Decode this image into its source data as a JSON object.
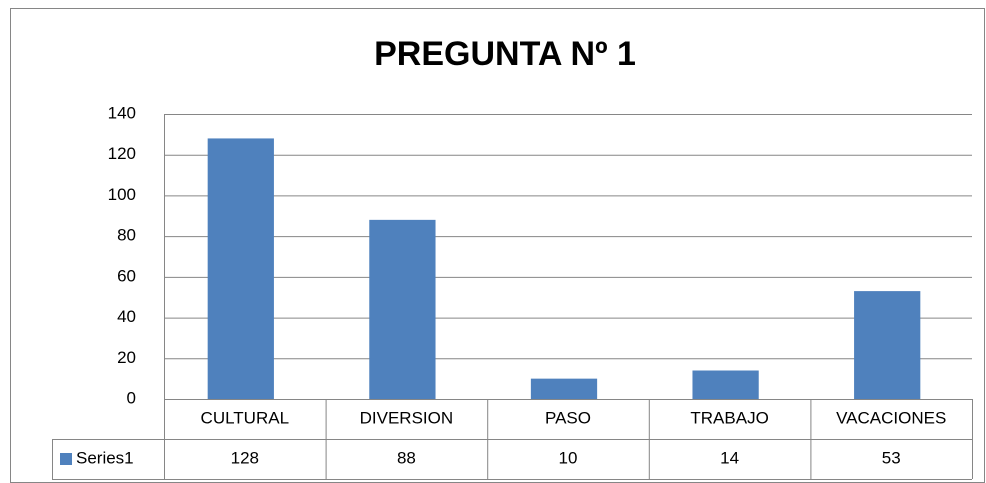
{
  "chart_data": {
    "type": "bar",
    "title": "PREGUNTA Nº 1",
    "categories": [
      "CULTURAL",
      "DIVERSION",
      "PASO",
      "TRABAJO",
      "VACACIONES"
    ],
    "series": [
      {
        "name": "Series1",
        "color": "#4f81bd",
        "values": [
          128,
          88,
          10,
          14,
          53
        ]
      }
    ],
    "ylim": [
      0,
      140
    ],
    "yticks": [
      0,
      20,
      40,
      60,
      80,
      100,
      120,
      140
    ],
    "grid": true,
    "data_table": true
  }
}
